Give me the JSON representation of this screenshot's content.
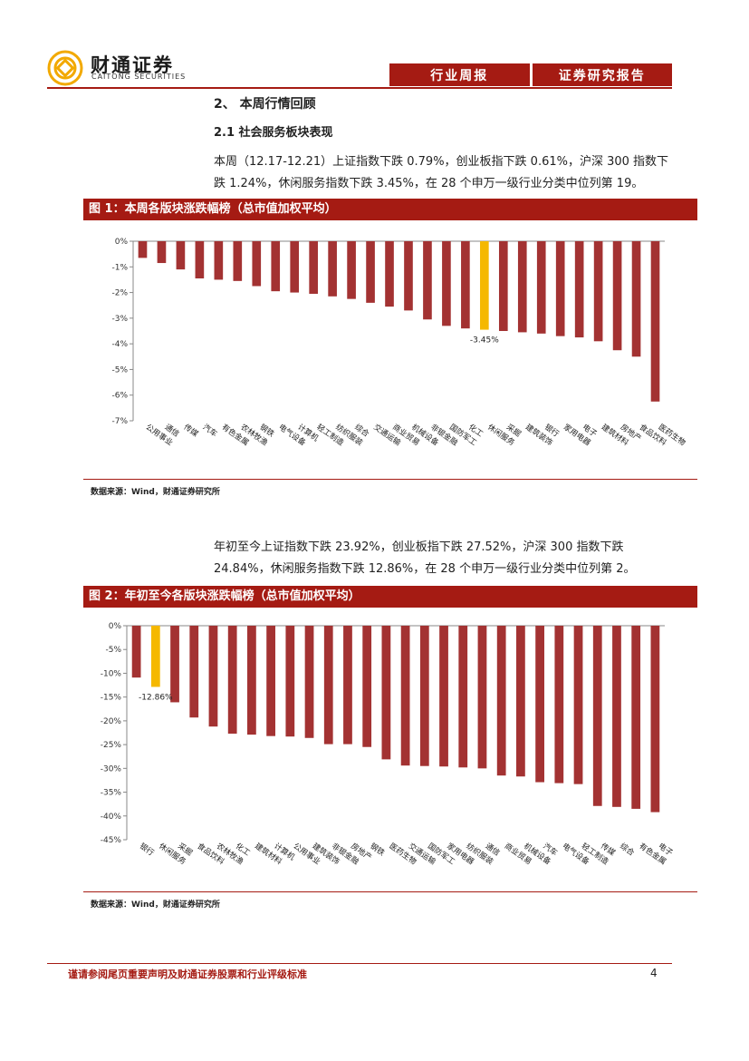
{
  "header": {
    "logo_cn": "财通证券",
    "logo_en": "CAITONG SECURITIES",
    "tab1": "行业周报",
    "tab2": "证券研究报告"
  },
  "section": {
    "heading": "2、 本周行情回顾",
    "subheading": "2.1  社会服务板块表现",
    "para1": "本周（12.17-12.21）上证指数下跌 0.79%，创业板指下跌 0.61%，沪深 300 指数下跌 1.24%，休闲服务指数下跌 3.45%，在 28 个申万一级行业分类中位列第 19。",
    "para2": "年初至今上证指数下跌 23.92%，创业板指下跌 27.52%，沪深 300 指数下跌 24.84%，休闲服务指数下跌 12.86%，在 28 个申万一级行业分类中位列第 2。"
  },
  "figure1": {
    "title": "图 1：本周各版块涨跌幅榜（总市值加权平均）",
    "source": "数据来源：Wind，财通证券研究所"
  },
  "figure2": {
    "title": "图 2：年初至今各版块涨跌幅榜（总市值加权平均）",
    "source": "数据来源：Wind，财通证券研究所"
  },
  "footer": {
    "disclaimer": "谨请参阅尾页重要声明及财通证券股票和行业评级标准",
    "page": "4"
  },
  "colors": {
    "bar": "#a33232",
    "highlight": "#f5b800",
    "brand": "#a51b13"
  },
  "chart_data": [
    {
      "type": "bar",
      "categories": [
        "公用事业",
        "通信",
        "传媒",
        "汽车",
        "有色金属",
        "农林牧渔",
        "钢铁",
        "电气设备",
        "计算机",
        "轻工制造",
        "纺织服装",
        "综合",
        "交通运输",
        "商业贸易",
        "机械设备",
        "非银金融",
        "国防军工",
        "化工",
        "休闲服务",
        "采掘",
        "建筑装饰",
        "银行",
        "家用电器",
        "电子",
        "建筑材料",
        "房地产",
        "食品饮料",
        "医药生物"
      ],
      "values": [
        -0.65,
        -0.85,
        -1.1,
        -1.45,
        -1.5,
        -1.55,
        -1.75,
        -1.95,
        -2.0,
        -2.05,
        -2.15,
        -2.25,
        -2.4,
        -2.55,
        -2.7,
        -3.05,
        -3.3,
        -3.4,
        -3.45,
        -3.5,
        -3.55,
        -3.6,
        -3.7,
        -3.75,
        -3.9,
        -4.25,
        -4.5,
        -6.25
      ],
      "highlight_index": 18,
      "annotation": "-3.45%",
      "y_ticks": [
        "0%",
        "-1%",
        "-2%",
        "-3%",
        "-4%",
        "-5%",
        "-6%",
        "-7%"
      ],
      "ylim": [
        -7,
        0
      ]
    },
    {
      "type": "bar",
      "categories": [
        "银行",
        "休闲服务",
        "采掘",
        "食品饮料",
        "农林牧渔",
        "化工",
        "建筑材料",
        "计算机",
        "公用事业",
        "建筑装饰",
        "非银金融",
        "房地产",
        "钢铁",
        "医药生物",
        "交通运输",
        "国防军工",
        "家用电器",
        "纺织服装",
        "通信",
        "商业贸易",
        "机械设备",
        "汽车",
        "电气设备",
        "轻工制造",
        "传媒",
        "综合",
        "有色金属",
        "电子"
      ],
      "values": [
        -10.9,
        -12.86,
        -16.1,
        -19.3,
        -21.2,
        -22.7,
        -22.9,
        -23.2,
        -23.3,
        -23.6,
        -24.9,
        -24.9,
        -25.5,
        -28.1,
        -29.4,
        -29.5,
        -29.6,
        -29.8,
        -30.0,
        -31.5,
        -31.7,
        -32.9,
        -33.1,
        -33.3,
        -37.9,
        -38.1,
        -38.5,
        -39.2
      ],
      "highlight_index": 1,
      "annotation": "-12.86%",
      "y_ticks": [
        "0%",
        "-5%",
        "-10%",
        "-15%",
        "-20%",
        "-25%",
        "-30%",
        "-35%",
        "-40%",
        "-45%"
      ],
      "ylim": [
        -45,
        0
      ]
    }
  ]
}
